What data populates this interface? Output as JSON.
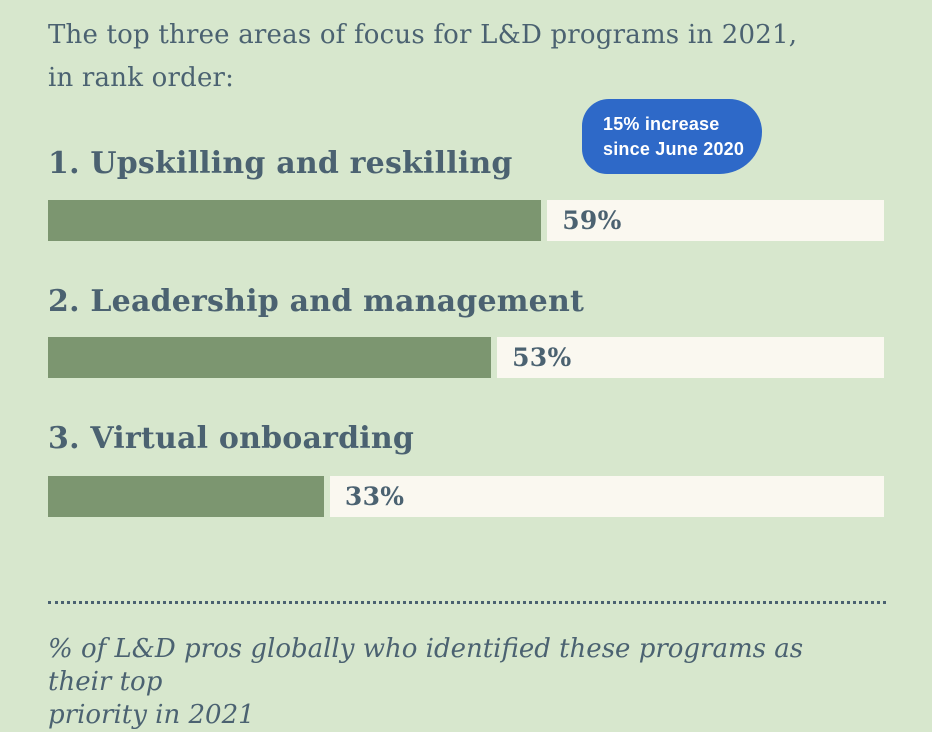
{
  "title": {
    "line1": "The top three areas of focus for L&D programs in 2021,",
    "line2": "in rank order:"
  },
  "badge": {
    "line1": "15% increase",
    "line2": "since June 2020"
  },
  "bars": [
    {
      "label": "1. Upskilling and reskilling",
      "value": 59,
      "value_label": "59%"
    },
    {
      "label": "2. Leadership and management",
      "value": 53,
      "value_label": "53%"
    },
    {
      "label": "3. Virtual onboarding",
      "value": 33,
      "value_label": "33%"
    }
  ],
  "footnote": {
    "line1": "% of L&D pros globally who identified these programs as their top",
    "line2": "priority in 2021"
  },
  "colors": {
    "background": "#d7e7cd",
    "bar_fill": "#7c9670",
    "bar_track": "#faf8f0",
    "text": "#4b6271",
    "badge": "#2e69c8",
    "badge_text": "#ffffff"
  },
  "chart_data": {
    "type": "bar",
    "orientation": "horizontal",
    "title": "The top three areas of focus for L&D programs in 2021, in rank order:",
    "categories": [
      "1. Upskilling and reskilling",
      "2. Leadership and management",
      "3. Virtual onboarding"
    ],
    "values": [
      59,
      53,
      33
    ],
    "value_labels": [
      "59%",
      "53%",
      "33%"
    ],
    "xlim": [
      0,
      100
    ],
    "grid": false,
    "legend": false,
    "annotation": "15% increase since June 2020",
    "footnote": "% of L&D pros globally who identified these programs as their top priority in 2021"
  }
}
